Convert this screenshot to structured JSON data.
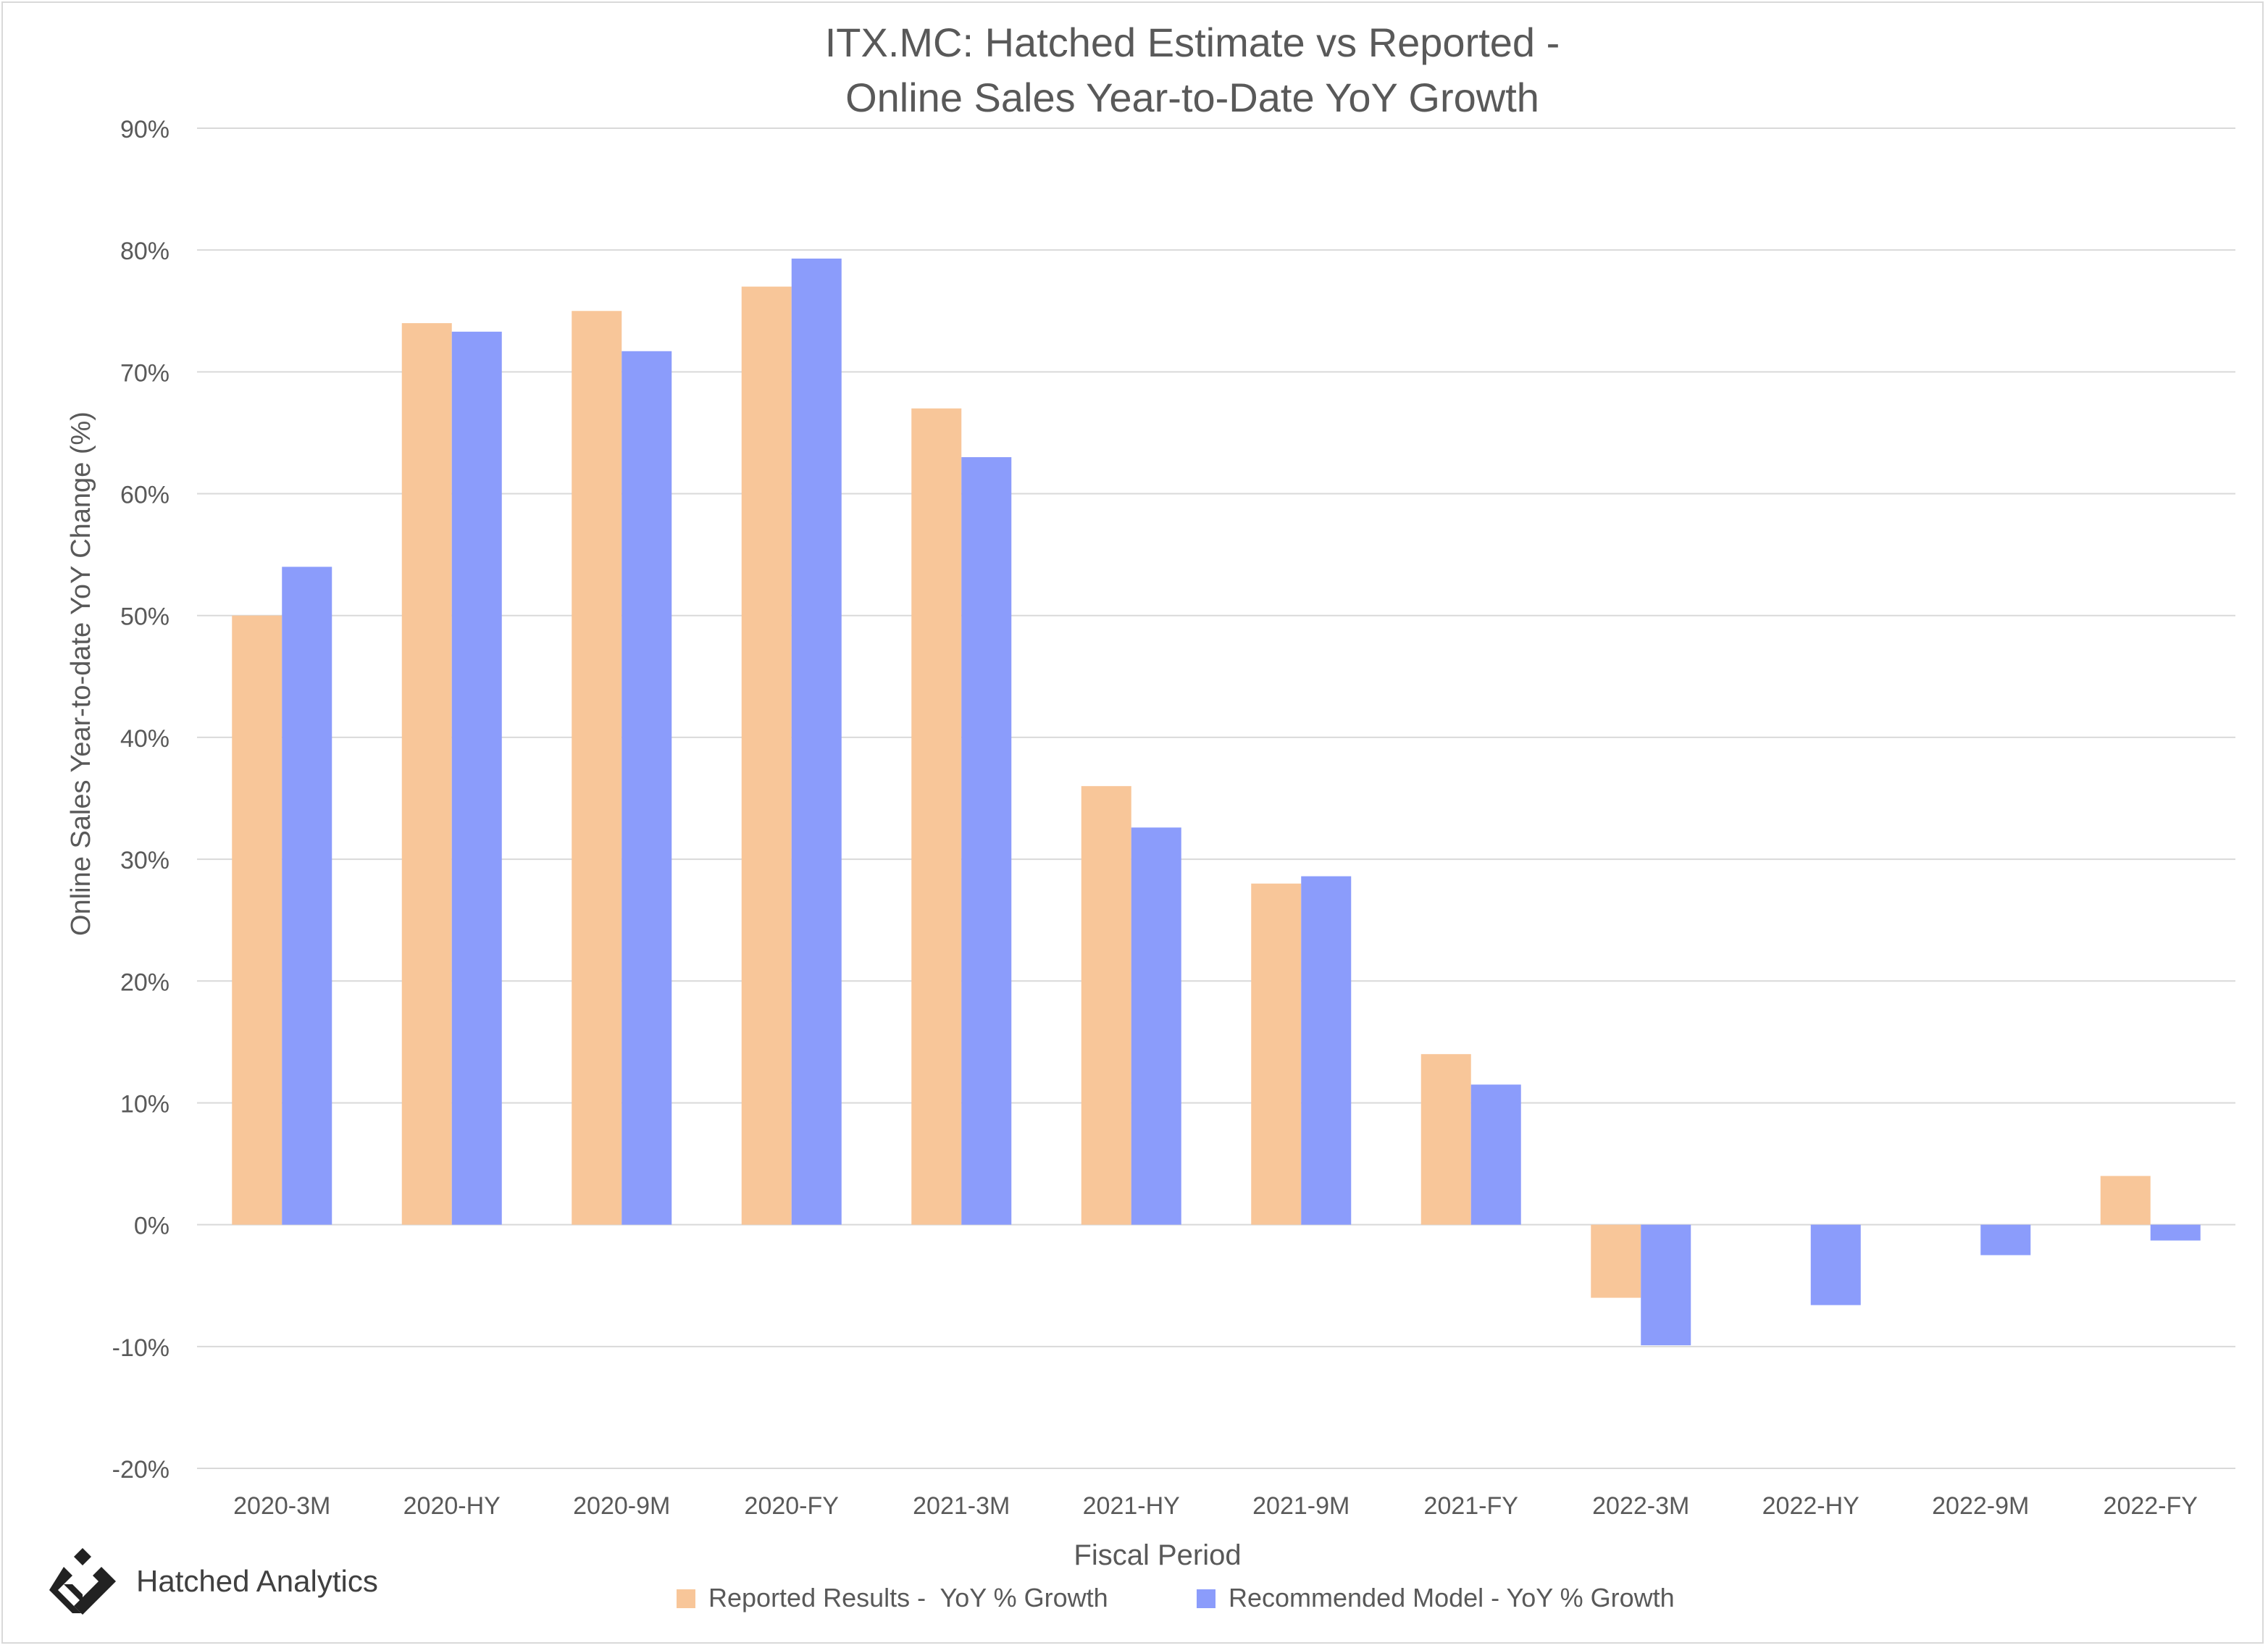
{
  "chart_data": {
    "type": "bar",
    "title_lines": [
      "ITX.MC: Hatched Estimate vs Reported -",
      "Online Sales Year-to-Date YoY Growth"
    ],
    "xlabel": "Fiscal Period",
    "ylabel": "Online Sales Year-to-date YoY Change (%)",
    "ylim": [
      -20,
      90
    ],
    "yticks": [
      -20,
      -10,
      0,
      10,
      20,
      30,
      40,
      50,
      60,
      70,
      80,
      90
    ],
    "ytick_labels": [
      "-20%",
      "-10%",
      "0%",
      "10%",
      "20%",
      "30%",
      "40%",
      "50%",
      "60%",
      "70%",
      "80%",
      "90%"
    ],
    "grid": true,
    "legend_position": "bottom",
    "categories": [
      "2020-3M",
      "2020-HY",
      "2020-9M",
      "2020-FY",
      "2021-3M",
      "2021-HY",
      "2021-9M",
      "2021-FY",
      "2022-3M",
      "2022-HY",
      "2022-9M",
      "2022-FY"
    ],
    "series": [
      {
        "name": "Reported Results -  YoY % Growth",
        "color": "#f8c699",
        "values": [
          50,
          74,
          75,
          77,
          67,
          36,
          28,
          14,
          -6,
          null,
          null,
          4
        ]
      },
      {
        "name": "Recommended Model - YoY % Growth",
        "color": "#8b9cfb",
        "values": [
          54,
          73.3,
          71.7,
          79.3,
          63,
          32.6,
          28.6,
          11.5,
          -9.9,
          -6.6,
          -2.5,
          -1.3
        ]
      }
    ]
  },
  "brand": {
    "name": "Hatched Analytics",
    "logo_icon": "hatched-diamond-logo-icon"
  },
  "colors": {
    "grid": "#d9d9d9",
    "text": "#595959",
    "axis": "#bfbfbf"
  }
}
